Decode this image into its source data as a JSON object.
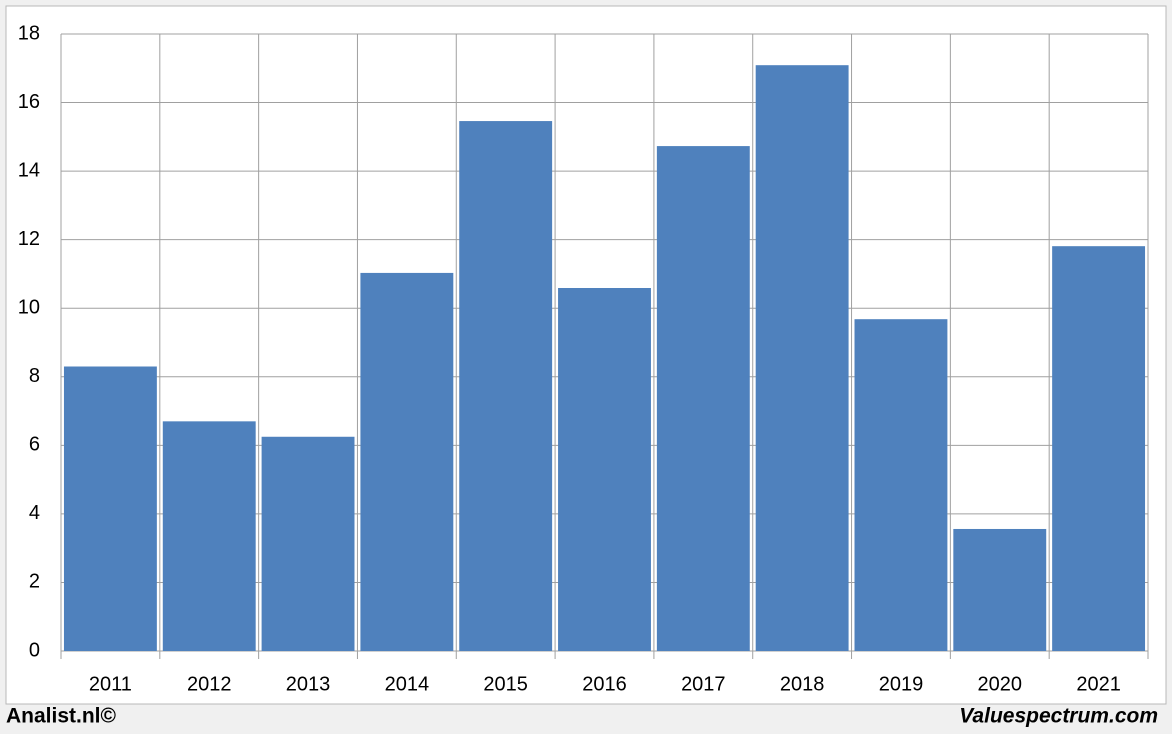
{
  "chart_data": {
    "type": "bar",
    "categories": [
      "2011",
      "2012",
      "2013",
      "2014",
      "2015",
      "2016",
      "2017",
      "2018",
      "2019",
      "2020",
      "2021"
    ],
    "values": [
      8.3,
      6.7,
      6.25,
      11.03,
      15.46,
      10.59,
      14.73,
      17.09,
      9.68,
      3.56,
      11.81
    ],
    "color": "#4f81bd",
    "ylim": [
      0,
      18
    ],
    "yticks": [
      0,
      2,
      4,
      6,
      8,
      10,
      12,
      14,
      16,
      18
    ],
    "grid": true
  },
  "footer": {
    "left": "Analist.nl©",
    "right": "Valuespectrum.com"
  }
}
